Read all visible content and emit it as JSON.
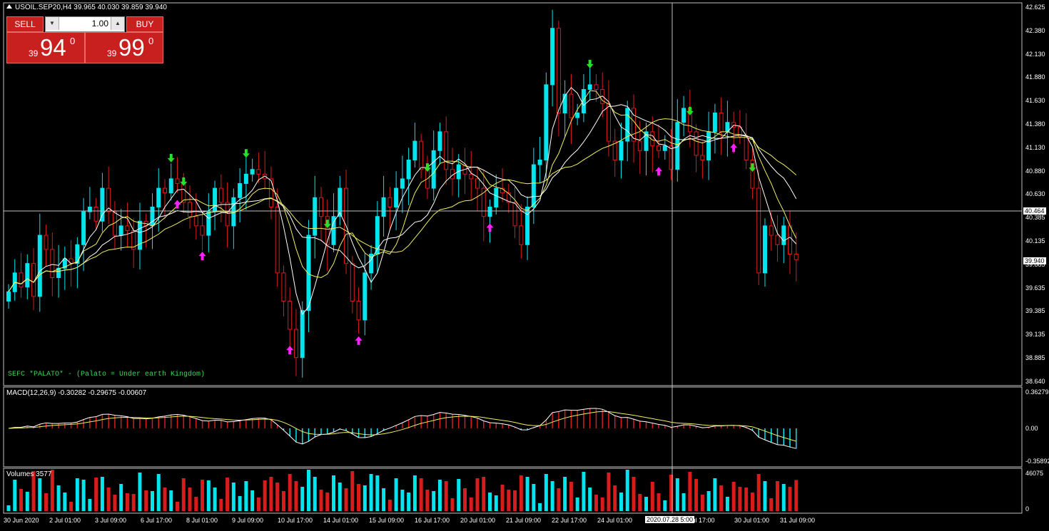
{
  "header": {
    "symbol_line": "USOIL.SEP20,H4  39.965 40.030 39.859 39.940"
  },
  "trade_panel": {
    "sell_label": "SELL",
    "buy_label": "BUY",
    "lot": "1.00",
    "sell_small": "39",
    "sell_big": "94",
    "sell_sup": "0",
    "buy_small": "39",
    "buy_big": "99",
    "buy_sup": "0"
  },
  "indicator_text": "SEFC *PALATO* - (Palato = Under earth Kingdom)",
  "macd_label": "MACD(12,26,9) -0.30282 -0.29675 -0.00607",
  "volume_label": "Volumes 3577",
  "price_axis": [
    "42.625",
    "42.380",
    "42.130",
    "41.880",
    "41.630",
    "41.380",
    "41.130",
    "40.880",
    "40.630",
    "40.385",
    "40.135",
    "39.885",
    "39.635",
    "39.385",
    "39.135",
    "38.885",
    "38.640"
  ],
  "cursor_price": "40.464",
  "last_price": "39.940",
  "macd_axis": [
    "0.36279",
    "0.00",
    "-0.35892"
  ],
  "volume_axis": [
    "46075",
    "0"
  ],
  "time_axis": [
    "30 Jun 2020",
    "2 Jul 01:00",
    "3 Jul 09:00",
    "6 Jul 17:00",
    "8 Jul 01:00",
    "9 Jul 09:00",
    "10 Jul 17:00",
    "14 Jul 01:00",
    "15 Jul 09:00",
    "16 Jul 17:00",
    "20 Jul 01:00",
    "21 Jul 09:00",
    "22 Jul 17:00",
    "24 Jul 01:00",
    "",
    "Jul 17:00",
    "30 Jul 01:00",
    "31 Jul 09:00"
  ],
  "cursor_time": "2020.07.28 5:00",
  "colors": {
    "bull": "#00e5ee",
    "bear": "#d81c1c",
    "ma_white": "#ffffff",
    "ma_yellow": "#f0f060",
    "up_arrow": "#ff20ff",
    "down_arrow": "#28e028",
    "grid": "#c0c0c0"
  },
  "chart_data": {
    "type": "candlestick",
    "symbol": "USOIL.SEP20",
    "timeframe": "H4",
    "ylim": [
      38.64,
      42.625
    ],
    "ohlc_close": [
      39.6,
      39.8,
      39.65,
      39.9,
      39.55,
      40.2,
      40.05,
      39.75,
      39.85,
      39.95,
      39.9,
      40.1,
      40.45,
      40.5,
      40.35,
      40.7,
      40.45,
      40.2,
      40.3,
      40.25,
      40.05,
      40.35,
      40.3,
      40.5,
      40.7,
      40.65,
      40.8,
      40.75,
      40.55,
      40.4,
      40.3,
      40.2,
      40.45,
      40.7,
      40.55,
      40.3,
      40.6,
      40.75,
      40.85,
      40.9,
      40.85,
      40.8,
      40.5,
      39.8,
      39.5,
      39.2,
      38.9,
      39.4,
      40.2,
      40.6,
      40.4,
      40.1,
      40.4,
      40.7,
      39.9,
      39.5,
      39.3,
      39.8,
      40.0,
      40.4,
      40.6,
      40.5,
      40.7,
      40.8,
      41.0,
      41.2,
      40.9,
      40.7,
      41.1,
      41.3,
      40.9,
      40.8,
      40.95,
      40.85,
      40.8,
      40.7,
      40.4,
      40.5,
      40.7,
      40.65,
      40.55,
      40.3,
      40.1,
      40.5,
      40.95,
      41.0,
      41.8,
      42.4,
      41.5,
      41.7,
      41.45,
      41.5,
      41.75,
      41.8,
      41.75,
      41.6,
      41.2,
      41.0,
      41.2,
      41.55,
      41.2,
      41.1,
      41.3,
      41.15,
      41.1,
      41.15,
      40.9,
      41.4,
      41.55,
      41.3,
      41.05,
      41.0,
      41.3,
      41.5,
      41.3,
      41.4,
      41.35,
      41.25,
      41.0,
      40.7,
      39.8,
      40.3,
      40.2,
      40.1,
      40.3,
      40.0,
      39.94
    ],
    "indicators": [
      "MACD(12,26,9)",
      "Volumes"
    ]
  }
}
